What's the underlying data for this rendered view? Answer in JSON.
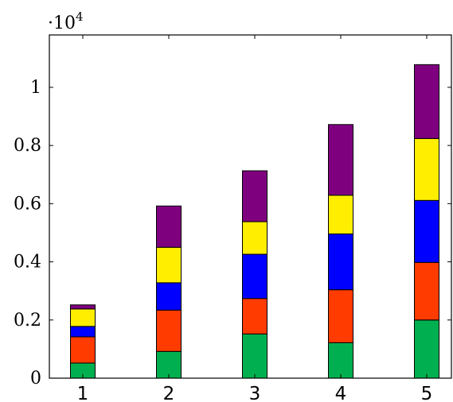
{
  "chart_data": {
    "type": "bar",
    "stacked": true,
    "categories": [
      "1",
      "2",
      "3",
      "4",
      "5"
    ],
    "series": [
      {
        "color": "#00b050",
        "values": [
          520,
          920,
          1520,
          1220,
          2000
        ]
      },
      {
        "color": "#ff3b00",
        "values": [
          900,
          1420,
          1220,
          1820,
          1980
        ]
      },
      {
        "color": "#0000ff",
        "values": [
          360,
          940,
          1520,
          1920,
          2130
        ]
      },
      {
        "color": "#ffee00",
        "values": [
          600,
          1220,
          1120,
          1330,
          2130
        ]
      },
      {
        "color": "#7f007f",
        "values": [
          140,
          1420,
          1750,
          2430,
          2540
        ]
      }
    ],
    "y_ticks": [
      0,
      0.2,
      0.4,
      0.6,
      0.8,
      1
    ],
    "y_tick_labels": [
      "0",
      "0.2",
      "0.4",
      "0.6",
      "0.8",
      "1"
    ],
    "y_multiplier_base": "·10",
    "y_multiplier_exp": "4",
    "y_scale": 10000,
    "ylim": [
      0,
      11800
    ],
    "grid": false,
    "title": "",
    "xlabel": "",
    "ylabel": ""
  }
}
